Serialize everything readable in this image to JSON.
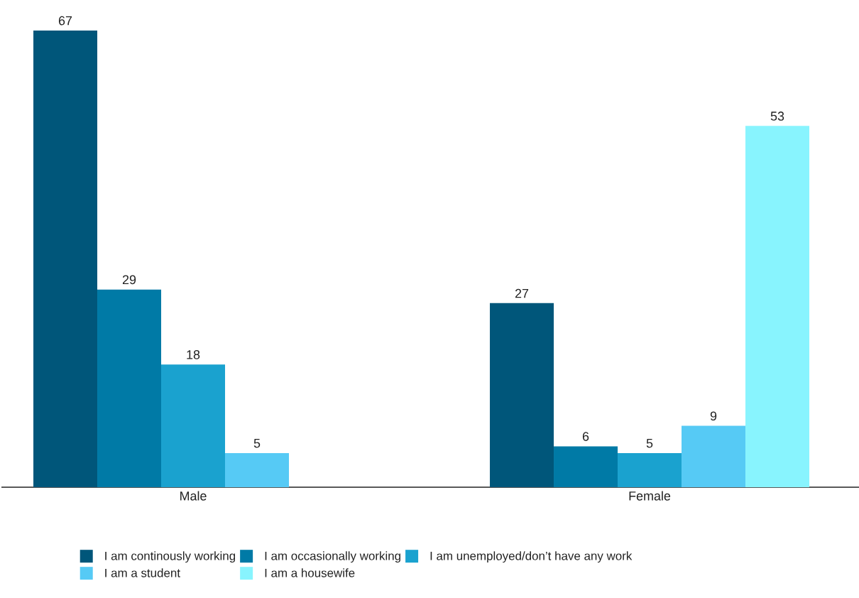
{
  "chart_data": {
    "type": "bar",
    "categories": [
      "Male",
      "Female"
    ],
    "series": [
      {
        "name": "I am continously working",
        "color": "#00567a",
        "values": [
          67,
          27
        ]
      },
      {
        "name": "I am occasionally working",
        "color": "#007aa6",
        "values": [
          29,
          6
        ]
      },
      {
        "name": "I am unemployed/don’t have any work",
        "color": "#1aa2cf",
        "values": [
          18,
          5
        ]
      },
      {
        "name": "I am  a student",
        "color": "#56caf5",
        "values": [
          5,
          9
        ]
      },
      {
        "name": "I am a housewife",
        "color": "#88f4fe",
        "values": [
          null,
          53
        ]
      }
    ],
    "data_labels": true,
    "legend": "bottom"
  }
}
